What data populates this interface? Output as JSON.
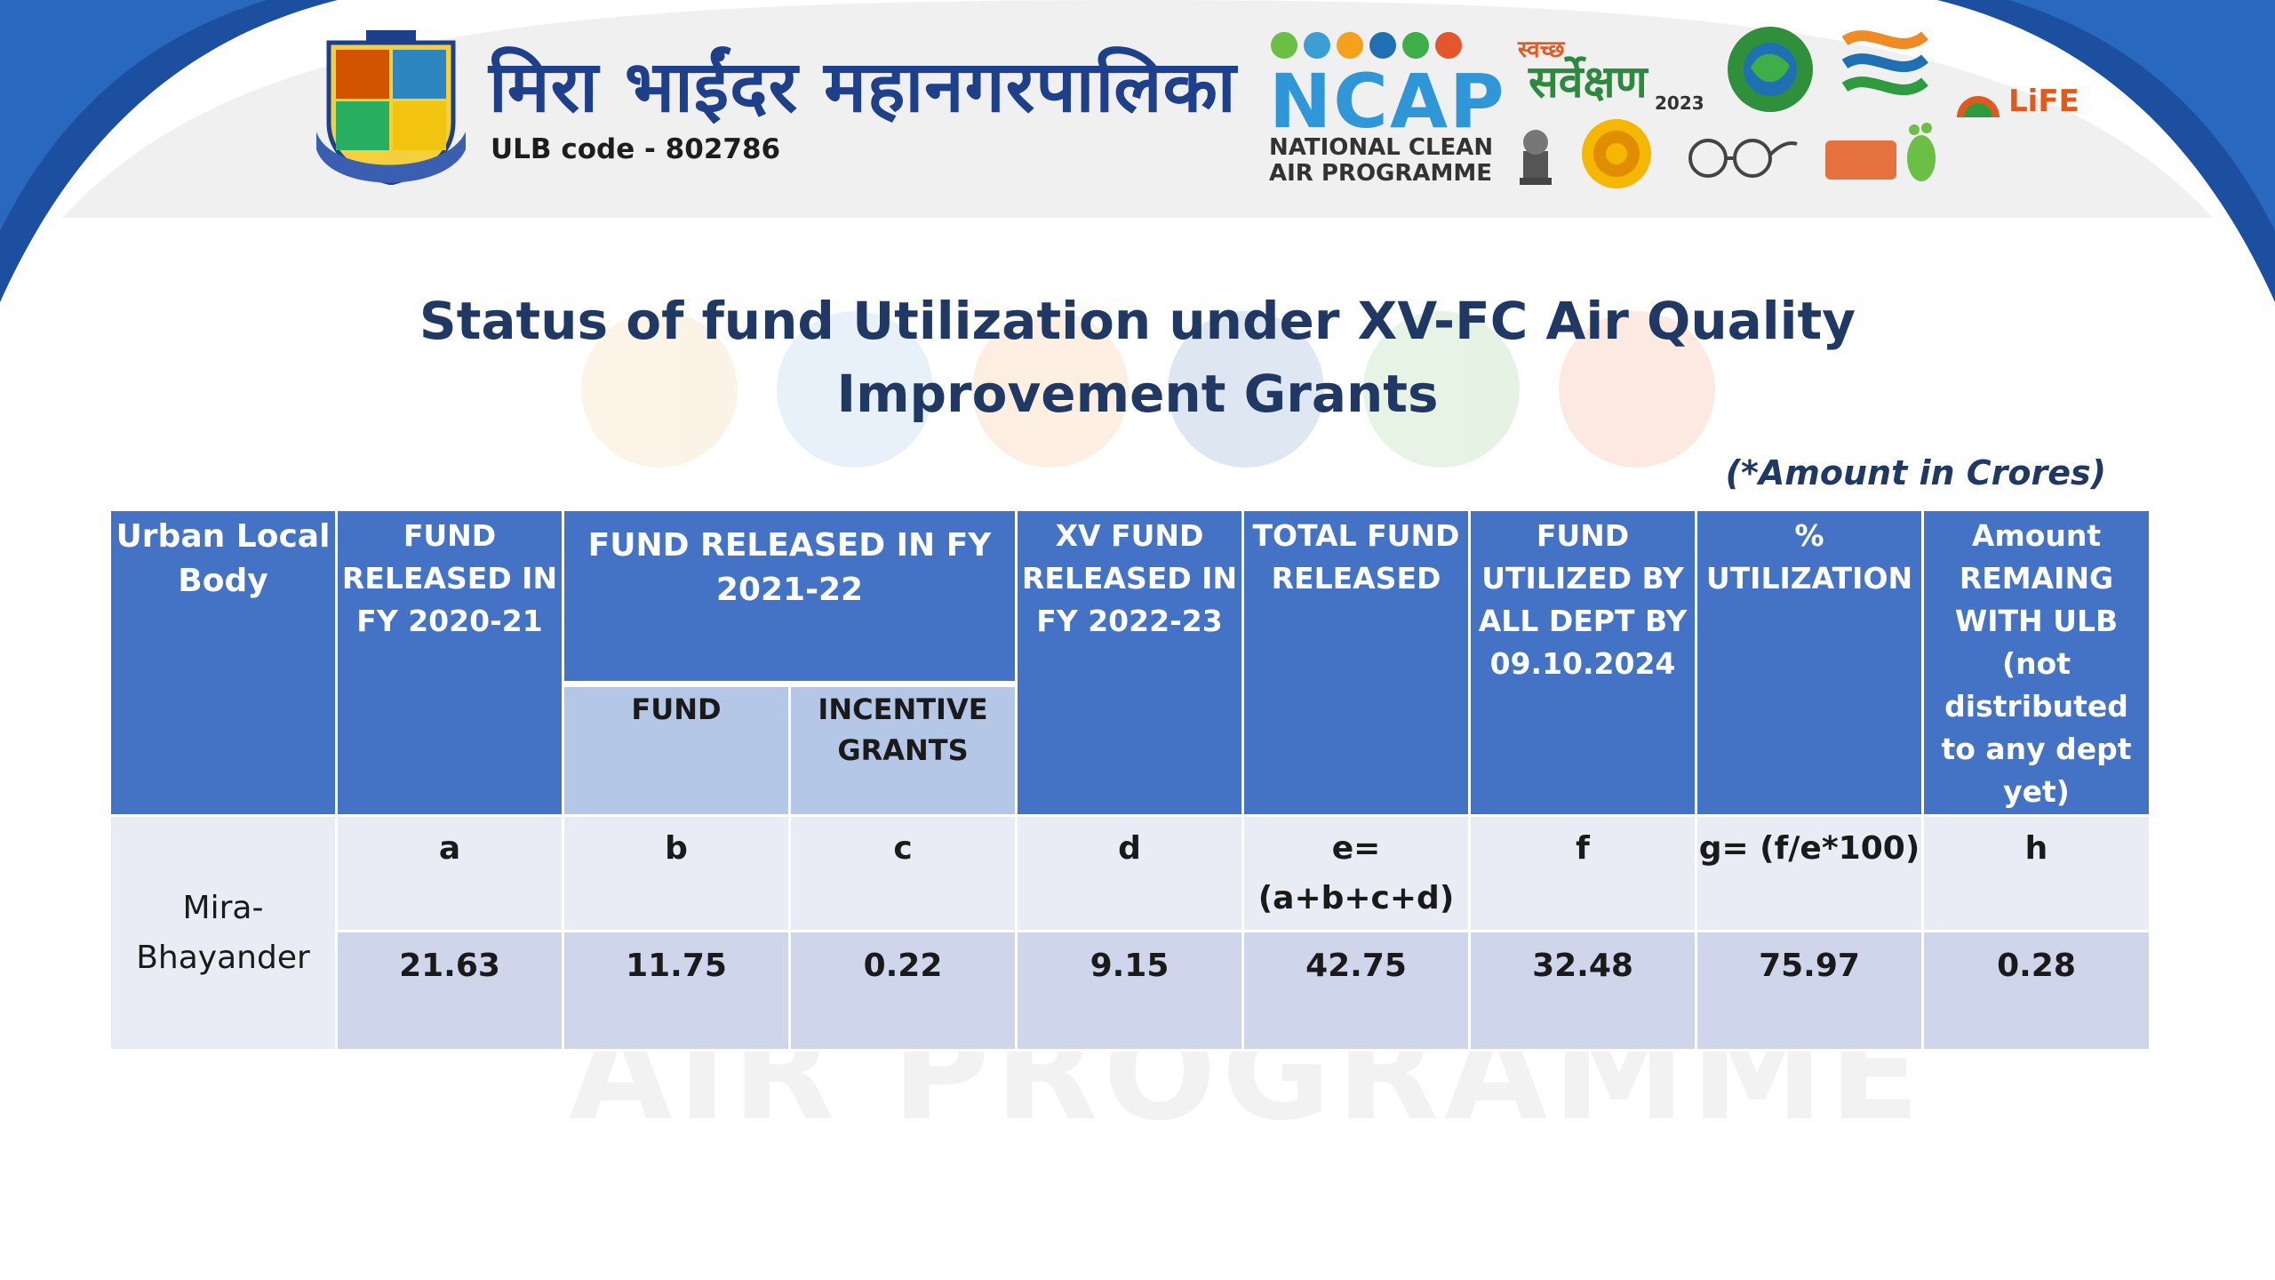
{
  "header": {
    "org_name": "मिरा भाईंदर महानगरपालिका",
    "ulb_code": "ULB code - 802786",
    "ncap": {
      "title": "NCAP",
      "subtitle_line1": "NATIONAL CLEAN",
      "subtitle_line2": "AIR PROGRAMME",
      "dot_colors": [
        "#6cbf45",
        "#3b9fd6",
        "#f5a11c",
        "#1f6fb3",
        "#3eae49",
        "#e4572e"
      ]
    },
    "swachh": {
      "top": "स्वच्छ",
      "main": "सर्वेक्षण",
      "year": "2023"
    },
    "life_logo": "LiFE"
  },
  "title": "Status of fund Utilization under XV-FC Air Quality Improvement Grants",
  "note": "(*Amount in Crores)",
  "table": {
    "headers": {
      "ulb": "Urban Local Body",
      "fund_2020": "FUND RELEASED IN FY 2020-21",
      "fund_2021": "FUND RELEASED IN  FY 2021-22",
      "fund_sub": "FUND",
      "incentive_sub": "INCENTIVE GRANTS",
      "xv_2022": "XV FUND RELEASED IN FY 2022-23",
      "total": "TOTAL FUND RELEASED",
      "utilized": "FUND UTILIZED BY ALL DEPT BY 09.10.2024",
      "pct": "% UTILIZATION",
      "remaining": "Amount REMAING WITH ULB (not distributed to any dept yet)"
    },
    "ulb_name": "Mira-Bhayander",
    "letters": {
      "a": "a",
      "b": "b",
      "c": "c",
      "d": "d",
      "e": "e= (a+b+c+d)",
      "f": "f",
      "g": "g= (f/e*100)",
      "h": "h"
    },
    "values": {
      "a": "21.63",
      "b": "11.75",
      "c": "0.22",
      "d": "9.15",
      "e": "42.75",
      "f": "32.48",
      "g": "75.97",
      "h": "0.28"
    }
  },
  "watermark": "AIR  PROGRAMME",
  "colors": {
    "header_blue": "#4472c4",
    "sub_header": "#b4c7e7",
    "title_navy": "#1f3864",
    "row_light": "#e9ebf5",
    "row_mid": "#cfd5ea"
  }
}
